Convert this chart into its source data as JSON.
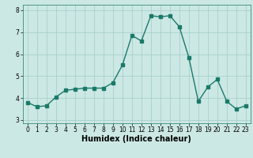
{
  "x": [
    0,
    1,
    2,
    3,
    4,
    5,
    6,
    7,
    8,
    9,
    10,
    11,
    12,
    13,
    14,
    15,
    16,
    17,
    18,
    19,
    20,
    21,
    22,
    23
  ],
  "y": [
    3.8,
    3.6,
    3.65,
    4.05,
    4.35,
    4.4,
    4.45,
    4.45,
    4.45,
    4.7,
    5.5,
    6.85,
    6.6,
    7.75,
    7.7,
    7.75,
    7.25,
    5.85,
    3.85,
    4.5,
    4.85,
    3.85,
    3.5,
    3.65
  ],
  "line_color": "#1a7a6a",
  "marker_color": "#1a7a6a",
  "bg_color": "#cce8e4",
  "grid_color": "#a0ccc8",
  "xlabel": "Humidex (Indice chaleur)",
  "xlim": [
    -0.5,
    23.5
  ],
  "ylim": [
    2.85,
    8.25
  ],
  "yticks": [
    3,
    4,
    5,
    6,
    7,
    8
  ],
  "xticks": [
    0,
    1,
    2,
    3,
    4,
    5,
    6,
    7,
    8,
    9,
    10,
    11,
    12,
    13,
    14,
    15,
    16,
    17,
    18,
    19,
    20,
    21,
    22,
    23
  ],
  "tick_fontsize": 5.5,
  "xlabel_fontsize": 7,
  "marker_size": 2.2,
  "line_width": 1.0
}
